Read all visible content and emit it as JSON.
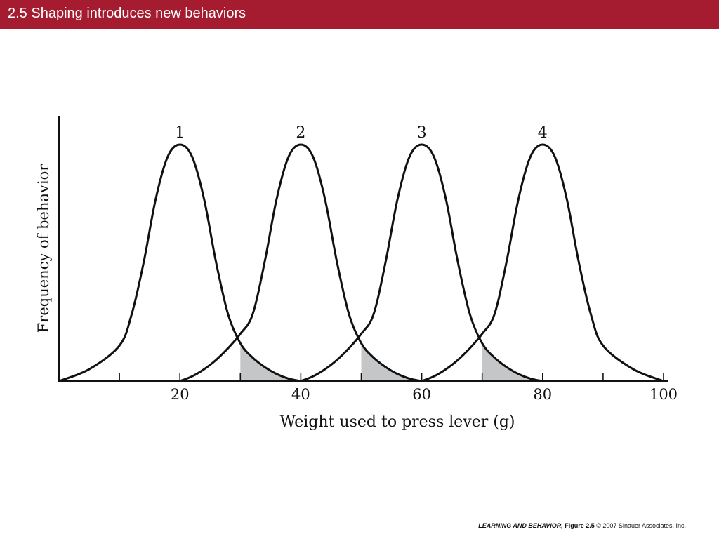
{
  "slide": {
    "title": "2.5  Shaping introduces new behaviors"
  },
  "credit": {
    "book": "LEARNING AND BEHAVIOR,",
    "figure": "Figure 2.5",
    "copyright": "© 2007 Sinauer Associates, Inc."
  },
  "chart_data": {
    "type": "line",
    "xlabel": "Weight used to press lever (g)",
    "ylabel": "Frequency of behavior",
    "xlim": [
      0,
      100
    ],
    "ylim": [
      0,
      1
    ],
    "x_ticks": [
      0,
      10,
      20,
      30,
      40,
      50,
      60,
      70,
      80,
      90,
      100
    ],
    "x_tick_labels": [
      {
        "value": 20,
        "label": "20"
      },
      {
        "value": 40,
        "label": "40"
      },
      {
        "value": 60,
        "label": "60"
      },
      {
        "value": 80,
        "label": "80"
      },
      {
        "value": 100,
        "label": "100"
      }
    ],
    "grid": false,
    "series": [
      {
        "name": "1",
        "x": [
          0,
          5,
          10,
          12,
          14,
          16,
          18,
          20,
          22,
          24,
          26,
          28,
          30,
          32,
          34,
          36,
          38,
          40
        ],
        "y": [
          0,
          0.05,
          0.15,
          0.28,
          0.5,
          0.77,
          0.95,
          1.0,
          0.95,
          0.77,
          0.5,
          0.28,
          0.16,
          0.1,
          0.06,
          0.03,
          0.01,
          0
        ]
      },
      {
        "name": "2",
        "x": [
          20,
          22,
          24,
          26,
          28,
          30,
          32,
          34,
          36,
          38,
          40,
          42,
          44,
          46,
          48,
          50,
          52,
          54,
          56,
          58,
          60
        ],
        "y": [
          0,
          0.02,
          0.05,
          0.09,
          0.14,
          0.2,
          0.28,
          0.5,
          0.77,
          0.95,
          1.0,
          0.95,
          0.77,
          0.5,
          0.28,
          0.16,
          0.1,
          0.06,
          0.03,
          0.01,
          0
        ]
      },
      {
        "name": "3",
        "x": [
          40,
          42,
          44,
          46,
          48,
          50,
          52,
          54,
          56,
          58,
          60,
          62,
          64,
          66,
          68,
          70,
          72,
          74,
          76,
          78,
          80
        ],
        "y": [
          0,
          0.02,
          0.05,
          0.09,
          0.14,
          0.2,
          0.28,
          0.5,
          0.77,
          0.95,
          1.0,
          0.95,
          0.77,
          0.5,
          0.28,
          0.16,
          0.1,
          0.06,
          0.03,
          0.01,
          0
        ]
      },
      {
        "name": "4",
        "x": [
          60,
          62,
          64,
          66,
          68,
          70,
          72,
          74,
          76,
          78,
          80,
          82,
          84,
          86,
          88,
          90,
          95,
          100
        ],
        "y": [
          0,
          0.02,
          0.05,
          0.09,
          0.14,
          0.2,
          0.28,
          0.5,
          0.77,
          0.95,
          1.0,
          0.95,
          0.77,
          0.5,
          0.28,
          0.15,
          0.05,
          0
        ]
      }
    ],
    "shaded_regions": [
      {
        "series": "1",
        "x_from": 30,
        "x_to": 40
      },
      {
        "series": "2",
        "x_from": 50,
        "x_to": 60
      },
      {
        "series": "3",
        "x_from": 70,
        "x_to": 80
      }
    ],
    "colors": {
      "line": "#111111",
      "shade": "#c4c6c8",
      "title_bar": "#a51c30"
    }
  }
}
